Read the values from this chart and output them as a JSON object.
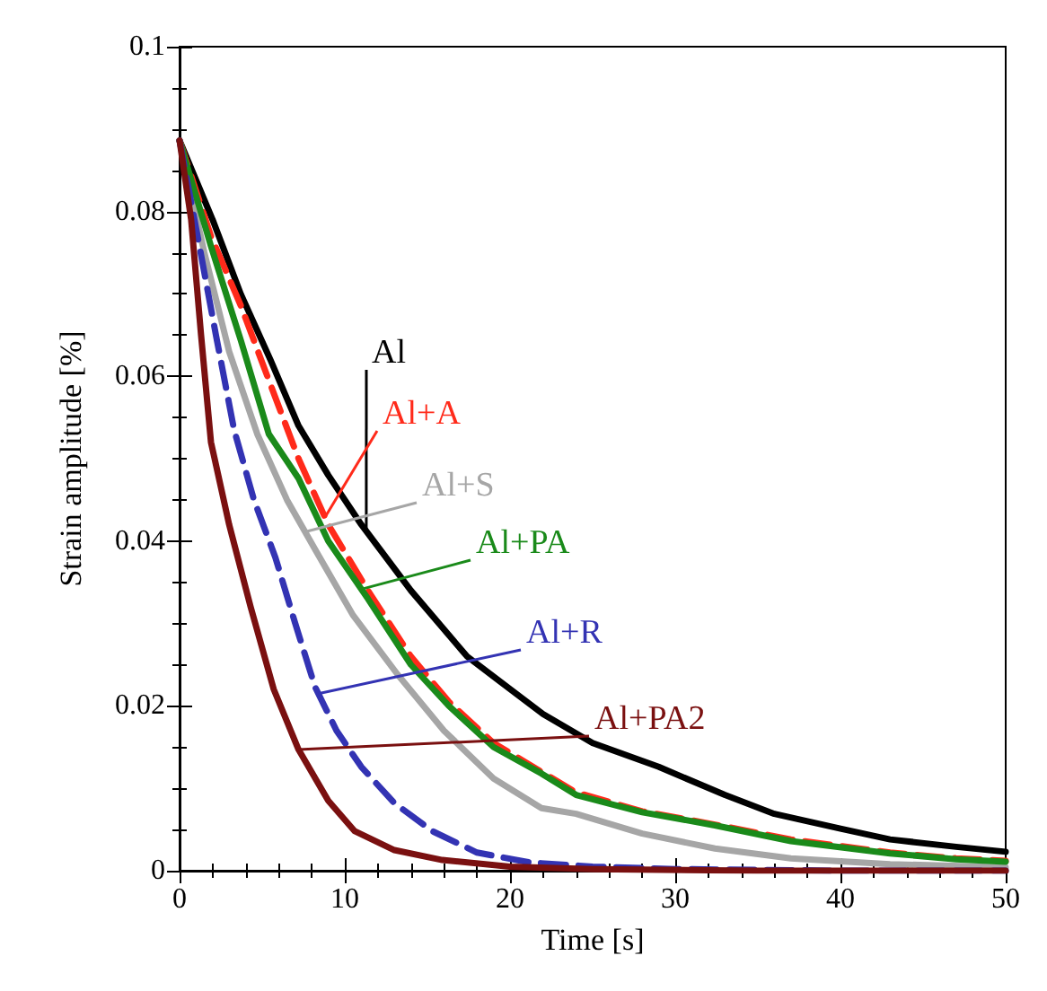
{
  "chart_data": {
    "type": "line",
    "xlabel": "Time [s]",
    "ylabel": "Strain amplitude [%]",
    "xlim": [
      0,
      50
    ],
    "xticks": [
      0,
      10,
      20,
      30,
      40,
      50
    ],
    "ylim": [
      0,
      0.1
    ],
    "yticks": [
      0,
      0.02,
      0.04,
      0.06,
      0.08,
      0.1
    ],
    "grid": false,
    "marker": "none",
    "series": [
      {
        "name": "Al",
        "color": "#000000",
        "line_style": "solid",
        "x": [
          0,
          2,
          3.7,
          5.5,
          7.2,
          9,
          11,
          14,
          17.4,
          22,
          25,
          29,
          33,
          36,
          40,
          43,
          47,
          50
        ],
        "values": [
          0.0886,
          0.079,
          0.07,
          0.062,
          0.054,
          0.048,
          0.042,
          0.034,
          0.026,
          0.019,
          0.0155,
          0.0126,
          0.0092,
          0.0069,
          0.0051,
          0.0038,
          0.0029,
          0.0023
        ]
      },
      {
        "name": "Al+A",
        "color": "#ff2a1a",
        "line_style": "dashed",
        "x": [
          0,
          1.9,
          3.7,
          5.5,
          7.2,
          9,
          11.4,
          14,
          16.3,
          19,
          21.9,
          24,
          28,
          32.4,
          37,
          43,
          47,
          50
        ],
        "values": [
          0.0886,
          0.077,
          0.0686,
          0.059,
          0.05,
          0.042,
          0.034,
          0.026,
          0.0205,
          0.0155,
          0.012,
          0.0095,
          0.0072,
          0.0056,
          0.0038,
          0.0022,
          0.0015,
          0.0012
        ]
      },
      {
        "name": "Al+S",
        "color": "#a6a6a6",
        "line_style": "solid",
        "x": [
          0,
          1.5,
          3,
          4.7,
          6.5,
          8.2,
          10.5,
          13.2,
          16,
          19,
          21.9,
          24,
          28,
          32.4,
          37,
          43,
          50
        ],
        "values": [
          0.0886,
          0.075,
          0.063,
          0.053,
          0.045,
          0.039,
          0.031,
          0.0238,
          0.017,
          0.0112,
          0.0076,
          0.0069,
          0.0045,
          0.0027,
          0.0015,
          0.0008,
          0.0004
        ]
      },
      {
        "name": "Al+PA",
        "color": "#1a8a1a",
        "line_style": "solid",
        "x": [
          0,
          1.9,
          3.7,
          5.4,
          7.2,
          9,
          11.4,
          14,
          16.3,
          19,
          21.9,
          24,
          28,
          32.4,
          37,
          43,
          47,
          50
        ],
        "values": [
          0.0886,
          0.0758,
          0.0644,
          0.053,
          0.0476,
          0.04,
          0.033,
          0.025,
          0.02,
          0.015,
          0.0118,
          0.0092,
          0.0071,
          0.0055,
          0.0036,
          0.0021,
          0.0014,
          0.0011
        ]
      },
      {
        "name": "Al+R",
        "color": "#3333b3",
        "line_style": "dashed",
        "x": [
          0,
          1.2,
          2.2,
          3.3,
          4.5,
          5.8,
          7,
          8.2,
          9.5,
          11,
          13,
          15.3,
          18,
          21.2,
          25,
          30,
          40,
          50
        ],
        "values": [
          0.0886,
          0.0758,
          0.065,
          0.0535,
          0.045,
          0.038,
          0.03,
          0.0223,
          0.017,
          0.0126,
          0.0082,
          0.0048,
          0.0022,
          0.001,
          0.0005,
          0.0002,
          0,
          0
        ]
      },
      {
        "name": "Al+PA2",
        "color": "#7a1010",
        "line_style": "solid",
        "x": [
          0,
          0.7,
          1.3,
          1.9,
          3,
          4.3,
          5.7,
          7.2,
          9,
          10.6,
          13,
          15.9,
          20,
          25,
          35,
          50
        ],
        "values": [
          0.0886,
          0.079,
          0.065,
          0.052,
          0.042,
          0.032,
          0.022,
          0.0147,
          0.0085,
          0.0048,
          0.0025,
          0.0013,
          0.0005,
          0.0002,
          0,
          0
        ]
      }
    ]
  }
}
